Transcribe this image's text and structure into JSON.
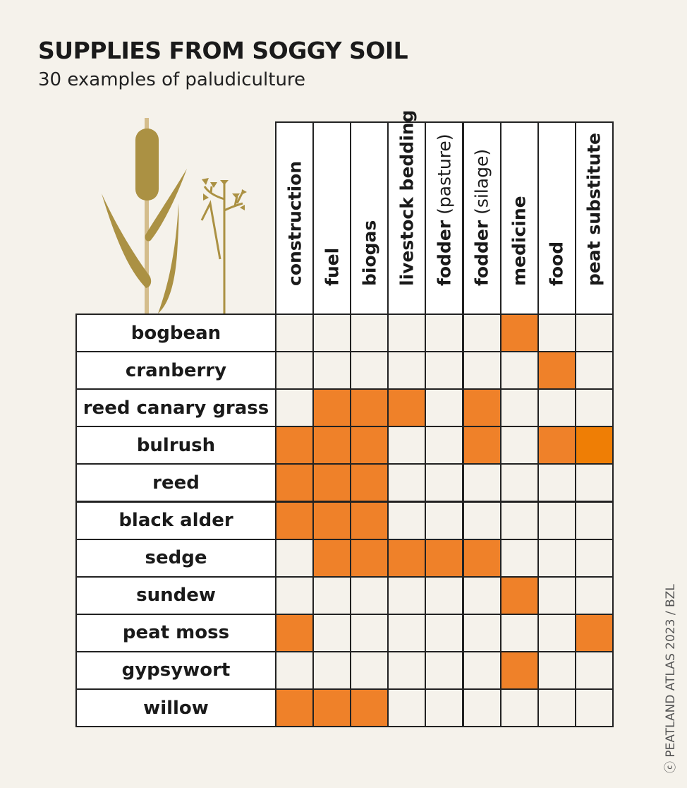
{
  "title": "SUPPLIES FROM SOGGY SOIL",
  "subtitle": "30 examples of paludiculture",
  "credit": "ⓒ PEATLAND ATLAS 2023 / BZL",
  "colors": {
    "background": "#f5f2eb",
    "filled": "#ef8129",
    "filled_alt": "#ef7e05",
    "empty": "#f5f2eb",
    "plant": "#ab9143",
    "stem": "#d4bd8c"
  },
  "icons": [
    "bulrush-plant-illustration",
    "flowering-plant-illustration"
  ],
  "chart_data": {
    "type": "heatmap",
    "title": "SUPPLIES FROM SOGGY SOIL",
    "subtitle": "30 examples of paludiculture",
    "columns": [
      {
        "label": "construction",
        "qualifier": ""
      },
      {
        "label": "fuel",
        "qualifier": ""
      },
      {
        "label": "biogas",
        "qualifier": ""
      },
      {
        "label": "livestock bedding",
        "qualifier": ""
      },
      {
        "label": "fodder",
        "qualifier": "(pasture)"
      },
      {
        "label": "fodder",
        "qualifier": "(silage)"
      },
      {
        "label": "medicine",
        "qualifier": ""
      },
      {
        "label": "food",
        "qualifier": ""
      },
      {
        "label": "peat substitute",
        "qualifier": ""
      }
    ],
    "rows": [
      {
        "label": "bogbean",
        "values": [
          0,
          0,
          0,
          0,
          0,
          0,
          1,
          0,
          0
        ]
      },
      {
        "label": "cranberry",
        "values": [
          0,
          0,
          0,
          0,
          0,
          0,
          0,
          1,
          0
        ]
      },
      {
        "label": "reed canary grass",
        "values": [
          0,
          1,
          1,
          1,
          0,
          1,
          0,
          0,
          0
        ]
      },
      {
        "label": "bulrush",
        "values": [
          1,
          1,
          1,
          0,
          0,
          1,
          0,
          1,
          1
        ]
      },
      {
        "label": "reed",
        "values": [
          1,
          1,
          1,
          0,
          0,
          0,
          0,
          0,
          0
        ]
      },
      {
        "label": "black alder",
        "values": [
          1,
          1,
          1,
          0,
          0,
          0,
          0,
          0,
          0
        ]
      },
      {
        "label": "sedge",
        "values": [
          0,
          1,
          1,
          1,
          1,
          1,
          0,
          0,
          0
        ]
      },
      {
        "label": "sundew",
        "values": [
          0,
          0,
          0,
          0,
          0,
          0,
          1,
          0,
          0
        ]
      },
      {
        "label": "peat moss",
        "values": [
          1,
          0,
          0,
          0,
          0,
          0,
          0,
          0,
          1
        ]
      },
      {
        "label": "gypsywort",
        "values": [
          0,
          0,
          0,
          0,
          0,
          0,
          1,
          0,
          0
        ]
      },
      {
        "label": "willow",
        "values": [
          1,
          1,
          1,
          0,
          0,
          0,
          0,
          0,
          0
        ]
      }
    ]
  }
}
